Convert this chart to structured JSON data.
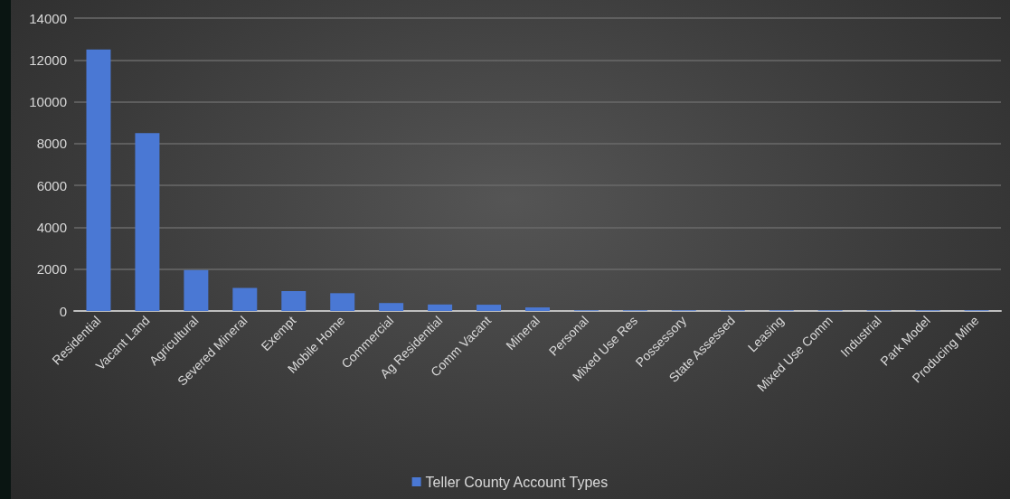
{
  "chart_data": {
    "type": "bar",
    "categories": [
      "Residential",
      "Vacant Land",
      "Agricultural",
      "Severed Mineral",
      "Exempt",
      "Mobile Home",
      "Commercial",
      "Ag Residential",
      "Comm Vacant",
      "Mineral",
      "Personal",
      "Mixed Use Res",
      "Possessory",
      "State Assessed",
      "Leasing",
      "Mixed Use Comm",
      "Industrial",
      "Park Model",
      "Producing Mine"
    ],
    "series": [
      {
        "name": "Teller County Account Types",
        "color": "#4a78d4",
        "values": [
          12500,
          8500,
          1950,
          1100,
          950,
          850,
          380,
          310,
          300,
          170,
          30,
          30,
          30,
          30,
          30,
          30,
          30,
          30,
          30
        ]
      }
    ],
    "ylim": [
      0,
      14000
    ],
    "yticks": [
      0,
      2000,
      4000,
      6000,
      8000,
      10000,
      12000,
      14000
    ],
    "grid": "y",
    "legend": "bottom"
  }
}
